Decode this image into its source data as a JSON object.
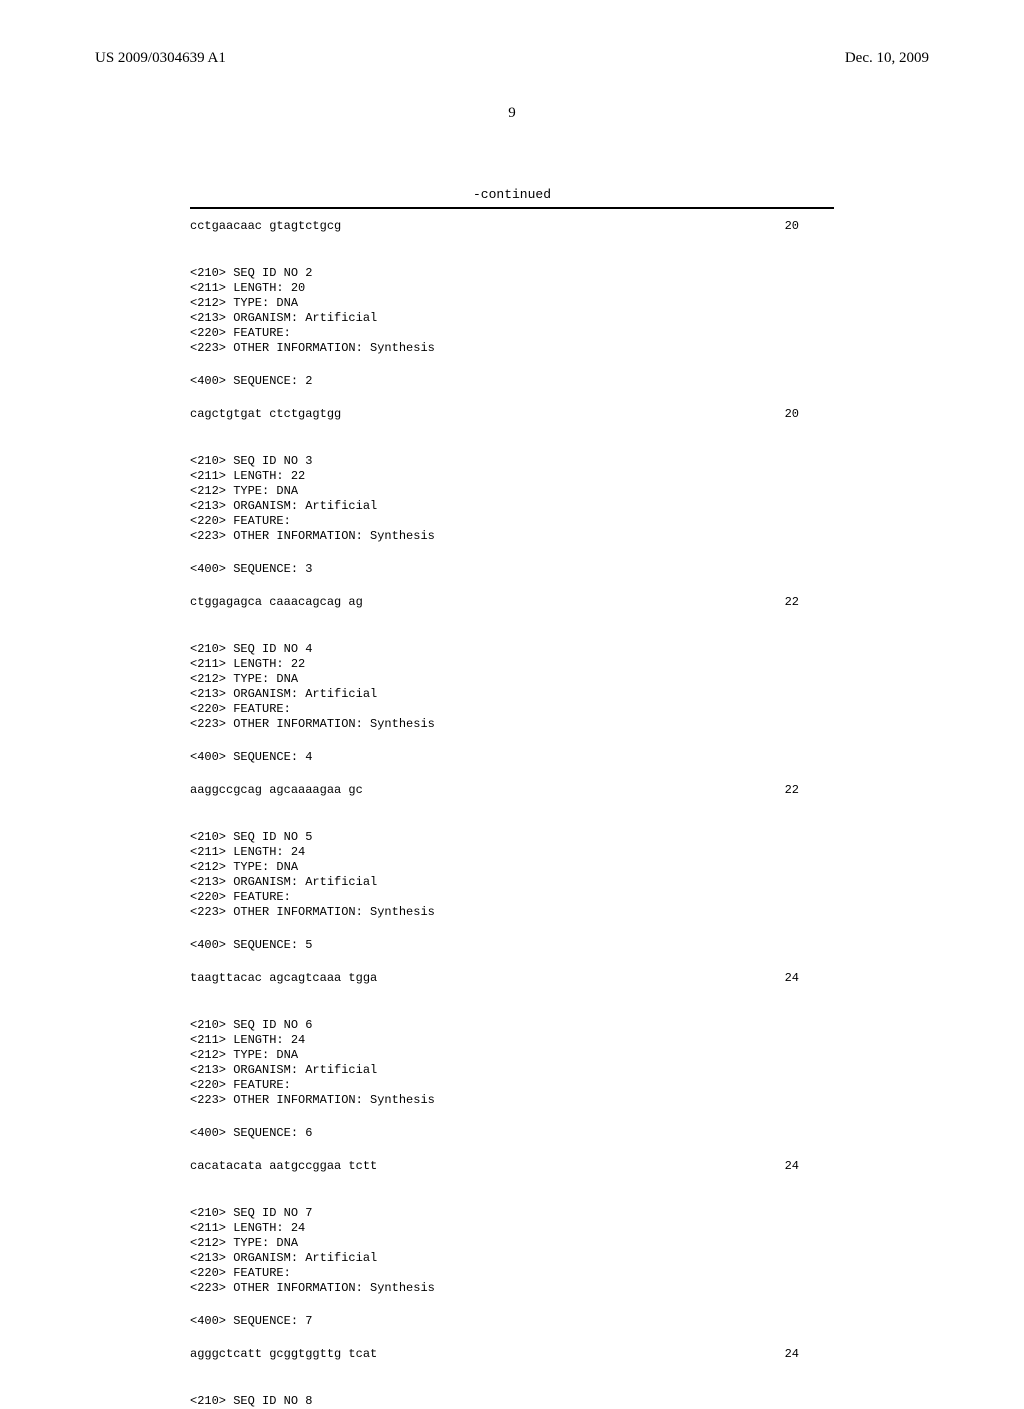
{
  "header": {
    "patent_number": "US 2009/0304639 A1",
    "date": "Dec. 10, 2009"
  },
  "page_number": "9",
  "continued_label": "-continued",
  "sequences": [
    {
      "seq_text": "cctgaacaac gtagtctgcg",
      "seq_length": "20"
    },
    {
      "header_lines": [
        "<210> SEQ ID NO 2",
        "<211> LENGTH: 20",
        "<212> TYPE: DNA",
        "<213> ORGANISM: Artificial",
        "<220> FEATURE:",
        "<223> OTHER INFORMATION: Synthesis"
      ],
      "sequence_label": "<400> SEQUENCE: 2",
      "seq_text": "cagctgtgat ctctgagtgg",
      "seq_length": "20"
    },
    {
      "header_lines": [
        "<210> SEQ ID NO 3",
        "<211> LENGTH: 22",
        "<212> TYPE: DNA",
        "<213> ORGANISM: Artificial",
        "<220> FEATURE:",
        "<223> OTHER INFORMATION: Synthesis"
      ],
      "sequence_label": "<400> SEQUENCE: 3",
      "seq_text": "ctggagagca caaacagcag ag",
      "seq_length": "22"
    },
    {
      "header_lines": [
        "<210> SEQ ID NO 4",
        "<211> LENGTH: 22",
        "<212> TYPE: DNA",
        "<213> ORGANISM: Artificial",
        "<220> FEATURE:",
        "<223> OTHER INFORMATION: Synthesis"
      ],
      "sequence_label": "<400> SEQUENCE: 4",
      "seq_text": "aaggccgcag agcaaaagaa gc",
      "seq_length": "22"
    },
    {
      "header_lines": [
        "<210> SEQ ID NO 5",
        "<211> LENGTH: 24",
        "<212> TYPE: DNA",
        "<213> ORGANISM: Artificial",
        "<220> FEATURE:",
        "<223> OTHER INFORMATION: Synthesis"
      ],
      "sequence_label": "<400> SEQUENCE: 5",
      "seq_text": "taagttacac agcagtcaaa tgga",
      "seq_length": "24"
    },
    {
      "header_lines": [
        "<210> SEQ ID NO 6",
        "<211> LENGTH: 24",
        "<212> TYPE: DNA",
        "<213> ORGANISM: Artificial",
        "<220> FEATURE:",
        "<223> OTHER INFORMATION: Synthesis"
      ],
      "sequence_label": "<400> SEQUENCE: 6",
      "seq_text": "cacatacata aatgccggaa tctt",
      "seq_length": "24"
    },
    {
      "header_lines": [
        "<210> SEQ ID NO 7",
        "<211> LENGTH: 24",
        "<212> TYPE: DNA",
        "<213> ORGANISM: Artificial",
        "<220> FEATURE:",
        "<223> OTHER INFORMATION: Synthesis"
      ],
      "sequence_label": "<400> SEQUENCE: 7",
      "seq_text": "agggctcatt gcggtggttg tcat",
      "seq_length": "24"
    }
  ],
  "trailing_line": "<210> SEQ ID NO 8"
}
